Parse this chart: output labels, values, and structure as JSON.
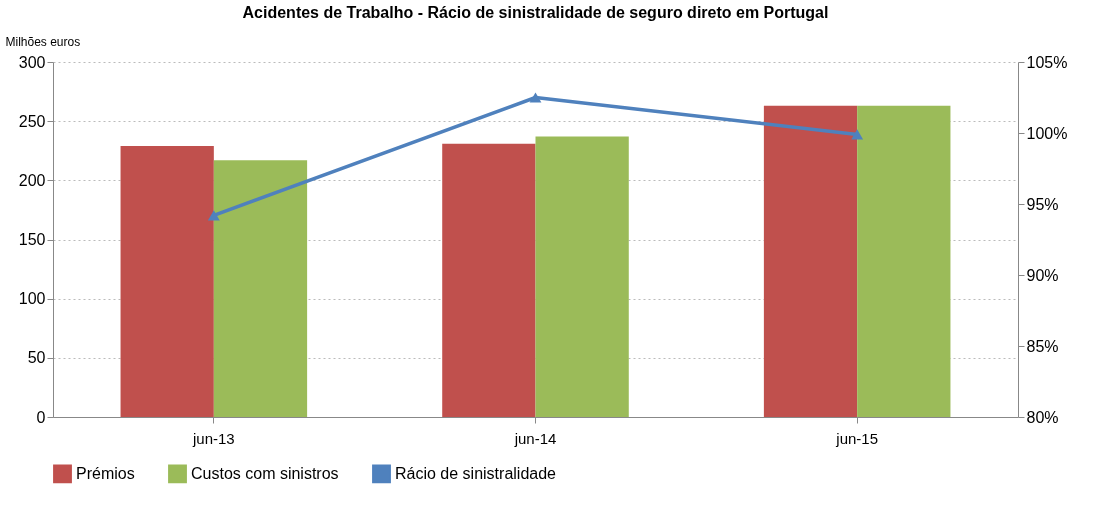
{
  "chart_data": {
    "type": "bar",
    "title": "Acidentes de Trabalho - Rácio de sinistralidade de seguro direto em Portugal",
    "ylabel": "Milhões euros",
    "categories": [
      "jun-13",
      "jun-14",
      "jun-15"
    ],
    "series": [
      {
        "name": "Prémios",
        "color": "#c0504d",
        "values": [
          229,
          231,
          263
        ]
      },
      {
        "name": "Custos com sinistros",
        "color": "#9bbb59",
        "values": [
          217,
          237,
          263
        ]
      },
      {
        "name": "Rácio de sinistralidade",
        "type": "line",
        "axis": "y2",
        "color": "#4f81bd",
        "marker": "triangle",
        "values": [
          94.2,
          102.5,
          99.9
        ]
      }
    ],
    "ylim": [
      0,
      300
    ],
    "yticks": [
      0,
      50,
      100,
      150,
      200,
      250,
      300
    ],
    "y2lim": [
      80,
      105
    ],
    "y2ticks": [
      {
        "value": 80,
        "label": "80%"
      },
      {
        "value": 85,
        "label": "85%"
      },
      {
        "value": 90,
        "label": "90%"
      },
      {
        "value": 95,
        "label": "95%"
      },
      {
        "value": 100,
        "label": "100%"
      },
      {
        "value": 105,
        "label": "105%"
      }
    ],
    "grid": "y",
    "legend": "bottom"
  }
}
